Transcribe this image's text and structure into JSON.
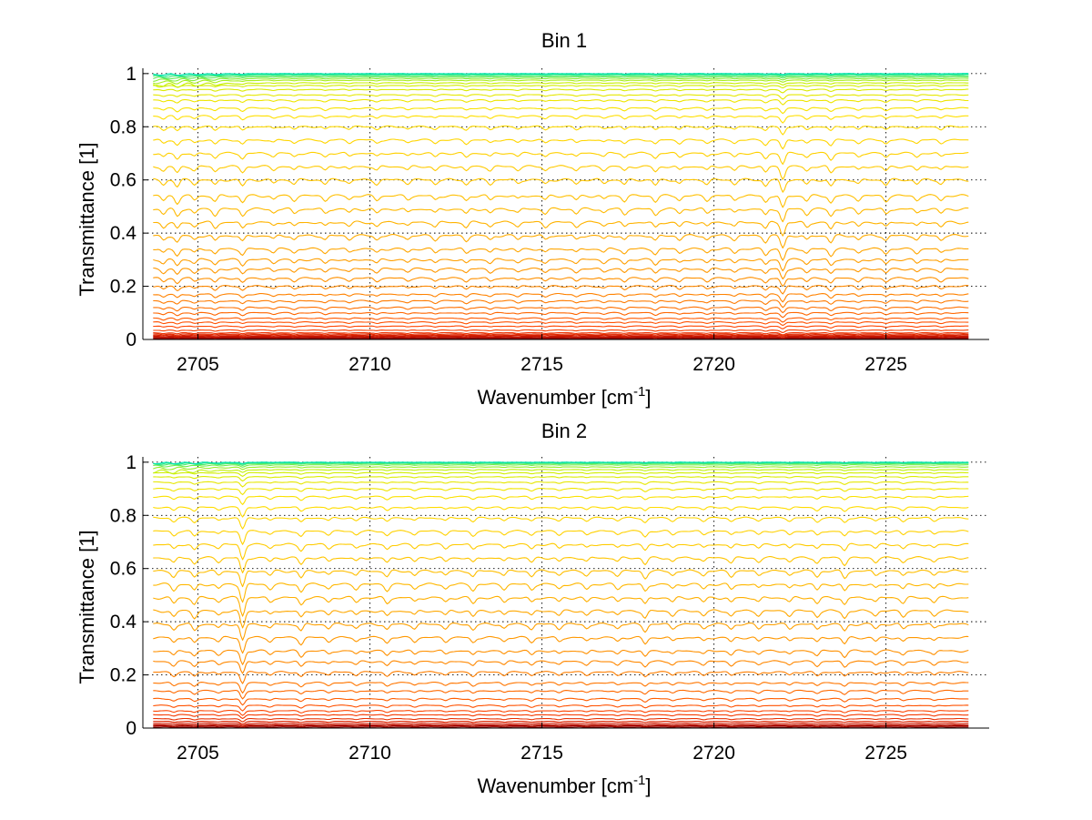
{
  "chart_data": [
    {
      "type": "line",
      "title": "Bin 1",
      "xlabel": "Wavenumber [cm",
      "xlabel_sup": "-1",
      "xlabel_end": "]",
      "ylabel": "Transmittance [1]",
      "xlim": [
        2703.4,
        2728.0
      ],
      "ylim": [
        0,
        1.02
      ],
      "data_x_range": [
        2703.7,
        2727.4
      ],
      "xticks": [
        2705,
        2710,
        2715,
        2720,
        2725
      ],
      "xtick_labels": [
        "2705",
        "2710",
        "2715",
        "2720",
        "2725"
      ],
      "yticks": [
        0,
        0.2,
        0.4,
        0.6,
        0.8,
        1
      ],
      "ytick_labels": [
        "0",
        "0.2",
        "0.4",
        "0.6",
        "0.8",
        "1"
      ],
      "grid": true,
      "legend": "none",
      "series_levels": [
        0.003,
        0.006,
        0.009,
        0.012,
        0.016,
        0.02,
        0.025,
        0.035,
        0.05,
        0.065,
        0.08,
        0.1,
        0.12,
        0.145,
        0.17,
        0.2,
        0.23,
        0.265,
        0.3,
        0.34,
        0.39,
        0.44,
        0.49,
        0.54,
        0.6,
        0.65,
        0.7,
        0.75,
        0.8,
        0.84,
        0.87,
        0.9,
        0.92,
        0.94,
        0.955,
        0.965,
        0.975,
        0.982,
        0.988,
        0.993,
        0.997,
        1.0
      ],
      "absorption_lines": [
        2704.0,
        2704.4,
        2704.9,
        2705.5,
        2706.3,
        2707.2,
        2707.8,
        2708.7,
        2709.4,
        2710.2,
        2711.1,
        2711.9,
        2712.8,
        2713.5,
        2714.3,
        2715.1,
        2716.0,
        2716.8,
        2717.4,
        2718.3,
        2719.0,
        2719.8,
        2720.6,
        2721.5,
        2722.0,
        2722.7,
        2723.4,
        2724.2,
        2725.0,
        2725.9,
        2726.6
      ],
      "line_strengths": [
        0.35,
        0.5,
        0.3,
        0.4,
        0.45,
        0.25,
        0.3,
        0.3,
        0.25,
        0.3,
        0.25,
        0.3,
        0.35,
        0.3,
        0.25,
        0.3,
        0.3,
        0.25,
        0.35,
        0.4,
        0.3,
        0.3,
        0.3,
        0.45,
        0.9,
        0.35,
        0.5,
        0.3,
        0.35,
        0.3,
        0.3
      ],
      "colormap": [
        "#8b0000",
        "#d21a00",
        "#ff4500",
        "#ff7a00",
        "#ffa000",
        "#ffc300",
        "#ffe000",
        "#c8f000",
        "#00e6b0"
      ]
    },
    {
      "type": "line",
      "title": "Bin 2",
      "xlabel": "Wavenumber [cm",
      "xlabel_sup": "-1",
      "xlabel_end": "]",
      "ylabel": "Transmittance [1]",
      "xlim": [
        2703.4,
        2728.0
      ],
      "ylim": [
        0,
        1.02
      ],
      "data_x_range": [
        2703.7,
        2727.4
      ],
      "xticks": [
        2705,
        2710,
        2715,
        2720,
        2725
      ],
      "xtick_labels": [
        "2705",
        "2710",
        "2715",
        "2720",
        "2725"
      ],
      "yticks": [
        0,
        0.2,
        0.4,
        0.6,
        0.8,
        1
      ],
      "ytick_labels": [
        "0",
        "0.2",
        "0.4",
        "0.6",
        "0.8",
        "1"
      ],
      "grid": true,
      "legend": "none",
      "series_levels": [
        0.004,
        0.008,
        0.012,
        0.018,
        0.025,
        0.035,
        0.05,
        0.065,
        0.085,
        0.11,
        0.14,
        0.17,
        0.21,
        0.25,
        0.29,
        0.34,
        0.39,
        0.44,
        0.49,
        0.54,
        0.59,
        0.64,
        0.69,
        0.74,
        0.79,
        0.83,
        0.87,
        0.9,
        0.925,
        0.945,
        0.96,
        0.972,
        0.982,
        0.99,
        0.995,
        0.998,
        1.0
      ],
      "absorption_lines": [
        2704.3,
        2704.9,
        2705.6,
        2706.3,
        2707.1,
        2708.0,
        2708.8,
        2709.6,
        2710.5,
        2711.3,
        2712.2,
        2713.0,
        2713.9,
        2714.7,
        2715.5,
        2716.3,
        2717.2,
        2718.0,
        2718.8,
        2719.7,
        2720.5,
        2721.3,
        2722.2,
        2723.0,
        2723.8,
        2724.7,
        2725.5,
        2726.4
      ],
      "line_strengths": [
        0.4,
        0.45,
        0.3,
        1.2,
        0.3,
        0.5,
        0.3,
        0.3,
        0.4,
        0.3,
        0.3,
        0.4,
        0.3,
        0.35,
        0.3,
        0.3,
        0.3,
        0.5,
        0.3,
        0.3,
        0.35,
        0.3,
        0.3,
        0.4,
        0.5,
        0.3,
        0.35,
        0.3
      ],
      "colormap": [
        "#8b0000",
        "#d21a00",
        "#ff4500",
        "#ff7a00",
        "#ffa000",
        "#ffc300",
        "#ffe000",
        "#c8f000",
        "#00e6b0"
      ]
    }
  ]
}
